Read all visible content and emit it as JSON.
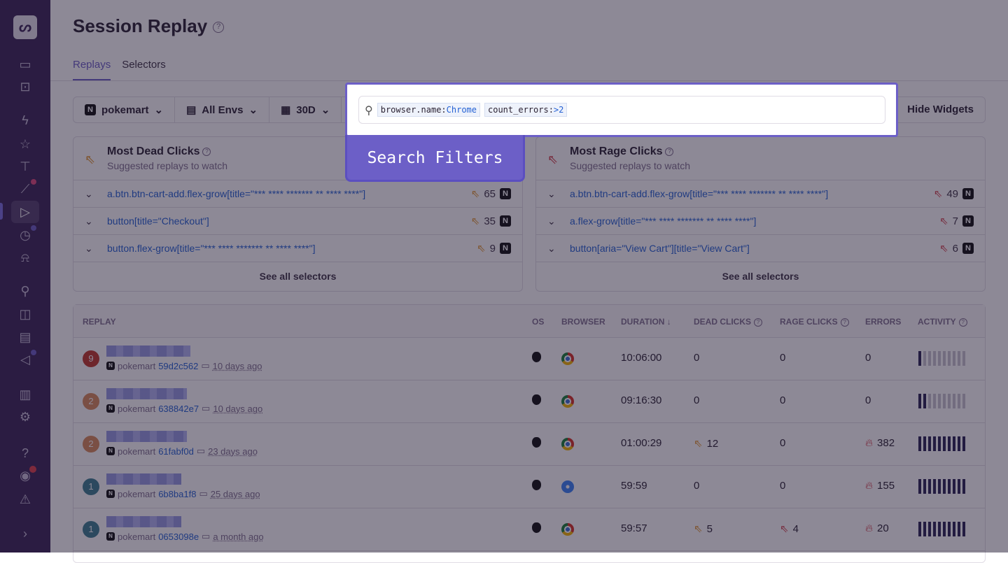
{
  "sidebar": {
    "icons": [
      "logo",
      "issues-icon",
      "projects-icon",
      "performance-icon",
      "starred-icon",
      "feedback-icon",
      "discover-icon",
      "replays-icon",
      "crons-icon",
      "alerts-icon",
      "releases-icon",
      "dashboards-icon",
      "stats-icon",
      "announcements-icon",
      "org-stats-icon",
      "settings-icon",
      "help-icon",
      "broadcast-icon",
      "service-incidents-icon",
      "collapse-icon"
    ]
  },
  "header": {
    "title": "Session Replay"
  },
  "tabs": [
    {
      "label": "Replays",
      "active": true
    },
    {
      "label": "Selectors",
      "active": false
    }
  ],
  "filters": {
    "project": "pokemart",
    "env": "All Envs",
    "period": "30D",
    "hide_widgets": "Hide Widgets"
  },
  "search": {
    "tokens": [
      {
        "key": "browser.name:",
        "value": "Chrome"
      },
      {
        "key": "count_errors:",
        "value": ">2"
      }
    ]
  },
  "callout": {
    "label": "Search Filters"
  },
  "dead_clicks": {
    "title": "Most Dead Clicks",
    "subtitle": "Suggested replays to watch",
    "see_all": "See all selectors",
    "items": [
      {
        "selector": "a.btn.btn-cart-add.flex-grow[title=\"*** **** ******* ** **** ****\"]",
        "count": "65"
      },
      {
        "selector": "button[title=\"Checkout\"]",
        "count": "35"
      },
      {
        "selector": "button.flex-grow[title=\"*** **** ******* ** **** ****\"]",
        "count": "9"
      }
    ]
  },
  "rage_clicks": {
    "title": "Most Rage Clicks",
    "subtitle": "Suggested replays to watch",
    "see_all": "See all selectors",
    "items": [
      {
        "selector": "a.btn.btn-cart-add.flex-grow[title=\"*** **** ******* ** **** ****\"]",
        "count": "49"
      },
      {
        "selector": "a.flex-grow[title=\"*** **** ******* ** **** ****\"]",
        "count": "7"
      },
      {
        "selector": "button[aria=\"View Cart\"][title=\"View Cart\"]",
        "count": "6"
      }
    ]
  },
  "table": {
    "headers": [
      "REPLAY",
      "OS",
      "BROWSER",
      "DURATION",
      "DEAD CLICKS",
      "RAGE CLICKS",
      "ERRORS",
      "ACTIVITY"
    ],
    "rows": [
      {
        "badge": "9",
        "badge_color": "#c0392b",
        "project": "pokemart",
        "id": "59d2c562",
        "ago": "10 days ago",
        "os": "macos",
        "browser": "chrome",
        "duration": "10:06:00",
        "dead": "0",
        "rage": "0",
        "errors": "0",
        "activity": 0.1
      },
      {
        "badge": "2",
        "badge_color": "#d98a5a",
        "project": "pokemart",
        "id": "638842e7",
        "ago": "10 days ago",
        "os": "macos",
        "browser": "chrome",
        "duration": "09:16:30",
        "dead": "0",
        "rage": "0",
        "errors": "0",
        "activity": 0.2
      },
      {
        "badge": "2",
        "badge_color": "#d98a5a",
        "project": "pokemart",
        "id": "61fabf0d",
        "ago": "23 days ago",
        "os": "macos",
        "browser": "chrome",
        "duration": "01:00:29",
        "dead": "12",
        "rage": "0",
        "errors": "382",
        "activity": 1
      },
      {
        "badge": "1",
        "badge_color": "#3d7e90",
        "project": "pokemart",
        "id": "6b8ba1f8",
        "ago": "25 days ago",
        "os": "macos",
        "browser": "safari",
        "duration": "59:59",
        "dead": "0",
        "rage": "0",
        "errors": "155",
        "activity": 1
      },
      {
        "badge": "1",
        "badge_color": "#3d7e90",
        "project": "pokemart",
        "id": "0653098e",
        "ago": "a month ago",
        "os": "macos",
        "browser": "chrome",
        "duration": "59:57",
        "dead": "5",
        "rage": "4",
        "errors": "20",
        "activity": 1
      }
    ]
  },
  "colors": {
    "accent": "#6c5fc7",
    "link": "#2562d4",
    "dead": "#e0952f",
    "rage": "#d2424d"
  }
}
